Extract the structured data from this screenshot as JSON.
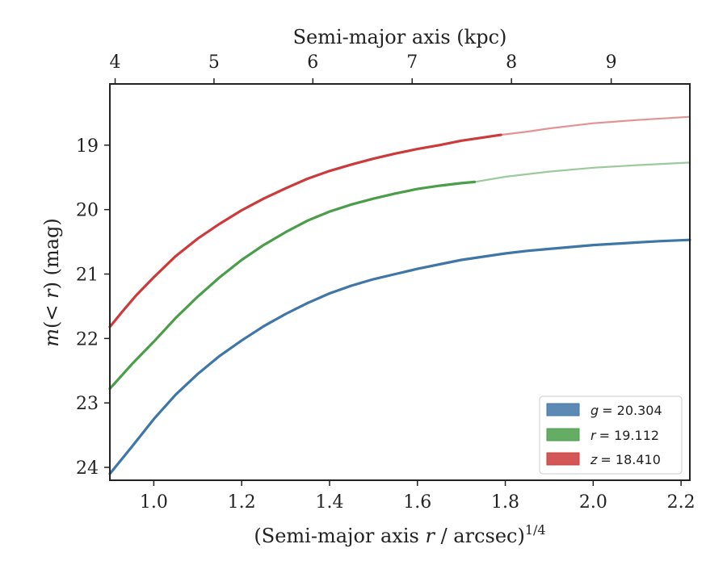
{
  "chart_data": {
    "type": "line",
    "xlabel_prefix": "(Semi-major axis ",
    "xlabel_var": "r",
    "xlabel_suffix": " / arcsec)",
    "xlabel_exp": "1/4",
    "ylabel_var": "m",
    "ylabel_mid": "(< ",
    "ylabel_var2": "r",
    "ylabel_suffix": ") (mag)",
    "top_xlabel": "Semi-major axis (kpc)",
    "xlim": [
      0.9,
      2.22
    ],
    "ylim": [
      24.2,
      18.05
    ],
    "y_inverted": true,
    "x_ticks": [
      1.0,
      1.2,
      1.4,
      1.6,
      1.8,
      2.0,
      2.2
    ],
    "x_tick_labels": [
      "1.0",
      "1.2",
      "1.4",
      "1.6",
      "1.8",
      "2.0",
      "2.2"
    ],
    "y_ticks": [
      19,
      20,
      21,
      22,
      23,
      24
    ],
    "y_tick_labels": [
      "19",
      "20",
      "21",
      "22",
      "23",
      "24"
    ],
    "top_ticks": [
      {
        "label": "4",
        "x": 0.912
      },
      {
        "label": "5",
        "x": 1.137
      },
      {
        "label": "6",
        "x": 1.362
      },
      {
        "label": "7",
        "x": 1.588
      },
      {
        "label": "8",
        "x": 1.814
      },
      {
        "label": "9",
        "x": 2.041
      }
    ],
    "legend_position": "lower-right",
    "series": [
      {
        "name": "g = 20.304",
        "legend_var": "g",
        "legend_value": "= 20.304",
        "color": "#3f76a8",
        "solid_x": [
          0.9,
          0.95,
          1.0,
          1.05,
          1.1,
          1.15,
          1.2,
          1.25,
          1.3,
          1.35,
          1.4,
          1.45,
          1.5,
          1.55,
          1.6,
          1.65,
          1.7,
          1.75,
          1.8,
          1.85,
          1.9,
          1.95,
          2.0,
          2.05,
          2.1,
          2.15,
          2.22
        ],
        "solid_y": [
          24.1,
          23.68,
          23.25,
          22.87,
          22.55,
          22.27,
          22.03,
          21.81,
          21.62,
          21.45,
          21.3,
          21.18,
          21.08,
          21.0,
          20.92,
          20.85,
          20.78,
          20.73,
          20.68,
          20.64,
          20.61,
          20.58,
          20.55,
          20.53,
          20.51,
          20.49,
          20.47
        ],
        "faded_x": [],
        "faded_y": []
      },
      {
        "name": "r = 19.112",
        "legend_var": "r",
        "legend_value": "= 19.112",
        "color": "#4a9e4a",
        "solid_x": [
          0.9,
          0.95,
          1.0,
          1.05,
          1.1,
          1.15,
          1.2,
          1.25,
          1.3,
          1.35,
          1.4,
          1.45,
          1.5,
          1.55,
          1.6,
          1.65,
          1.7,
          1.73
        ],
        "solid_y": [
          22.78,
          22.4,
          22.05,
          21.68,
          21.35,
          21.05,
          20.78,
          20.55,
          20.35,
          20.17,
          20.03,
          19.92,
          19.83,
          19.75,
          19.68,
          19.63,
          19.59,
          19.57
        ],
        "faded_x": [
          1.73,
          1.8,
          1.9,
          2.0,
          2.1,
          2.22
        ],
        "faded_y": [
          19.57,
          19.49,
          19.41,
          19.35,
          19.31,
          19.27
        ]
      },
      {
        "name": "z = 18.410",
        "legend_var": "z",
        "legend_value": "= 18.410",
        "color": "#cc3a3a",
        "solid_x": [
          0.9,
          0.93,
          0.96,
          1.0,
          1.05,
          1.1,
          1.15,
          1.2,
          1.25,
          1.3,
          1.35,
          1.4,
          1.45,
          1.5,
          1.55,
          1.6,
          1.65,
          1.7,
          1.75,
          1.79
        ],
        "solid_y": [
          21.82,
          21.57,
          21.33,
          21.05,
          20.72,
          20.45,
          20.22,
          20.01,
          19.83,
          19.67,
          19.52,
          19.4,
          19.3,
          19.21,
          19.13,
          19.06,
          19.0,
          18.93,
          18.88,
          18.84
        ],
        "faded_x": [
          1.79,
          1.85,
          1.9,
          2.0,
          2.1,
          2.22
        ],
        "faded_y": [
          18.84,
          18.79,
          18.74,
          18.66,
          18.61,
          18.56
        ]
      }
    ]
  }
}
